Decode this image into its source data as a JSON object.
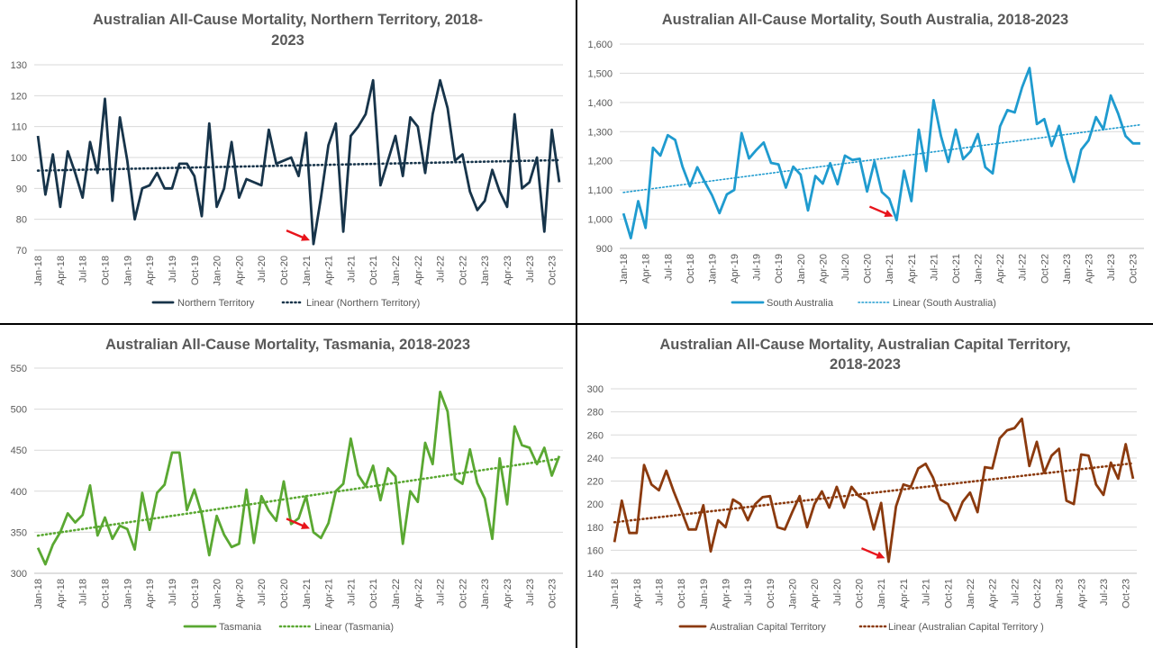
{
  "chart_data": [
    {
      "type": "line",
      "title_lines": [
        "Australian All-Cause Mortality, Northern Territory, 2018-",
        "2023"
      ],
      "ylim": [
        70,
        130
      ],
      "yticks": [
        70,
        80,
        90,
        100,
        110,
        120,
        130
      ],
      "ytick_labels": [
        "70",
        "80",
        "90",
        "100",
        "110",
        "120",
        "130"
      ],
      "x_tick_labels": [
        "Jan-18",
        "Apr-18",
        "Jul-18",
        "Oct-18",
        "Jan-19",
        "Apr-19",
        "Jul-19",
        "Oct-19",
        "Jan-20",
        "Apr-20",
        "Jul-20",
        "Oct-20",
        "Jan-21",
        "Apr-21",
        "Jul-21",
        "Oct-21",
        "Jan-22",
        "Apr-22",
        "Jul-22",
        "Oct-22",
        "Jan-23",
        "Apr-23",
        "Jul-23",
        "Oct-23"
      ],
      "grid": "horizontal",
      "legend_position": "bottom",
      "series": [
        {
          "name": "Northern Territory",
          "color": "#17344A",
          "style": "solid",
          "values": [
            107,
            88,
            101,
            84,
            102,
            95,
            87,
            105,
            95,
            119,
            86,
            113,
            99,
            80,
            90,
            91,
            95,
            90,
            90,
            98,
            98,
            94,
            81,
            111,
            84,
            90,
            105,
            87,
            93,
            92,
            91,
            109,
            98,
            99,
            100,
            94,
            108,
            72,
            87,
            104,
            111,
            76,
            107,
            110,
            114,
            125,
            91,
            99,
            107,
            94,
            113,
            110,
            95,
            114,
            125,
            116,
            99,
            101,
            89,
            83,
            86,
            96,
            89,
            84,
            114,
            90,
            92,
            100,
            76,
            109,
            92
          ]
        },
        {
          "name": "Linear (Northern Territory)",
          "color": "#17344A",
          "style": "dotted",
          "trend_of": 0
        }
      ],
      "arrow_at": "Feb-21"
    },
    {
      "type": "line",
      "title_lines": [
        "Australian All-Cause Mortality, South Australia, 2018-2023"
      ],
      "ylim": [
        900,
        1600
      ],
      "yticks": [
        900,
        1000,
        1100,
        1200,
        1300,
        1400,
        1500,
        1600
      ],
      "ytick_labels": [
        "900",
        "1,000",
        "1,100",
        "1,200",
        "1,300",
        "1,400",
        "1,500",
        "1,600"
      ],
      "x_tick_labels": [
        "Jan-18",
        "Apr-18",
        "Jul-18",
        "Oct-18",
        "Jan-19",
        "Apr-19",
        "Jul-19",
        "Oct-19",
        "Jan-20",
        "Apr-20",
        "Jul-20",
        "Oct-20",
        "Jan-21",
        "Apr-21",
        "Jul-21",
        "Oct-21",
        "Jan-22",
        "Apr-22",
        "Jul-22",
        "Oct-22",
        "Jan-23",
        "Apr-23",
        "Jul-23",
        "Oct-23"
      ],
      "grid": "horizontal",
      "legend_position": "bottom",
      "series": [
        {
          "name": "South Australia",
          "color": "#1F9BCF",
          "style": "solid",
          "values": [
            1020,
            935,
            1062,
            970,
            1245,
            1218,
            1288,
            1272,
            1180,
            1113,
            1178,
            1128,
            1082,
            1021,
            1085,
            1100,
            1295,
            1208,
            1237,
            1263,
            1193,
            1188,
            1108,
            1180,
            1153,
            1030,
            1148,
            1122,
            1192,
            1120,
            1218,
            1203,
            1207,
            1095,
            1198,
            1093,
            1070,
            997,
            1166,
            1062,
            1307,
            1165,
            1408,
            1285,
            1196,
            1307,
            1206,
            1232,
            1292,
            1178,
            1157,
            1318,
            1374,
            1366,
            1452,
            1518,
            1326,
            1343,
            1251,
            1320,
            1208,
            1128,
            1238,
            1270,
            1350,
            1308,
            1424,
            1362,
            1285,
            1260,
            1260
          ]
        },
        {
          "name": "Linear (South Australia)",
          "color": "#1F9BCF",
          "style": "dotted",
          "trend_of": 0
        }
      ],
      "arrow_at": "Feb-21"
    },
    {
      "type": "line",
      "title_lines": [
        "Australian All-Cause Mortality, Tasmania, 2018-2023"
      ],
      "ylim": [
        300,
        550
      ],
      "yticks": [
        300,
        350,
        400,
        450,
        500,
        550
      ],
      "ytick_labels": [
        "300",
        "350",
        "400",
        "450",
        "500",
        "550"
      ],
      "x_tick_labels": [
        "Jan-18",
        "Apr-18",
        "Jul-18",
        "Oct-18",
        "Jan-19",
        "Apr-19",
        "Jul-19",
        "Oct-19",
        "Jan-20",
        "Apr-20",
        "Jul-20",
        "Oct-20",
        "Jan-21",
        "Apr-21",
        "Jul-21",
        "Oct-21",
        "Jan-22",
        "Apr-22",
        "Jul-22",
        "Oct-22",
        "Jan-23",
        "Apr-23",
        "Jul-23",
        "Oct-23"
      ],
      "grid": "horizontal",
      "legend_position": "bottom",
      "series": [
        {
          "name": "Tasmania",
          "color": "#5AA832",
          "style": "solid",
          "values": [
            331,
            311,
            335,
            350,
            373,
            362,
            371,
            407,
            346,
            368,
            342,
            358,
            354,
            329,
            398,
            353,
            398,
            408,
            447,
            447,
            377,
            402,
            372,
            322,
            370,
            347,
            332,
            336,
            402,
            337,
            394,
            376,
            364,
            412,
            360,
            367,
            394,
            350,
            343,
            361,
            400,
            409,
            464,
            420,
            406,
            431,
            389,
            428,
            418,
            336,
            400,
            387,
            459,
            433,
            521,
            497,
            415,
            409,
            451,
            410,
            391,
            342,
            440,
            384,
            479,
            456,
            453,
            433,
            453,
            419,
            443
          ]
        },
        {
          "name": "Linear (Tasmania)",
          "color": "#5AA832",
          "style": "dotted",
          "trend_of": 0
        }
      ],
      "arrow_at": "Feb-21"
    },
    {
      "type": "line",
      "title_lines": [
        "Australian All-Cause Mortality, Australian Capital Territory,",
        "2018-2023"
      ],
      "ylim": [
        140,
        300
      ],
      "yticks": [
        140,
        160,
        180,
        200,
        220,
        240,
        260,
        280,
        300
      ],
      "ytick_labels": [
        "140",
        "160",
        "180",
        "200",
        "220",
        "240",
        "260",
        "280",
        "300"
      ],
      "x_tick_labels": [
        "Jan-18",
        "Apr-18",
        "Jul-18",
        "Oct-18",
        "Jan-19",
        "Apr-19",
        "Jul-19",
        "Oct-19",
        "Jan-20",
        "Apr-20",
        "Jul-20",
        "Oct-20",
        "Jan-21",
        "Apr-21",
        "Jul-21",
        "Oct-21",
        "Jan-22",
        "Apr-22",
        "Jul-22",
        "Oct-22",
        "Jan-23",
        "Apr-23",
        "Jul-23",
        "Oct-23"
      ],
      "grid": "horizontal",
      "legend_position": "bottom",
      "series": [
        {
          "name": "Australian Capital Territory",
          "color": "#8B3A0E",
          "style": "solid",
          "values": [
            167,
            203,
            175,
            175,
            234,
            217,
            212,
            229,
            211,
            195,
            178,
            178,
            199,
            159,
            186,
            180,
            204,
            200,
            186,
            200,
            206,
            207,
            180,
            178,
            193,
            207,
            180,
            200,
            211,
            197,
            215,
            197,
            215,
            207,
            203,
            178,
            201,
            150,
            198,
            217,
            215,
            231,
            235,
            223,
            204,
            200,
            186,
            202,
            210,
            193,
            232,
            231,
            257,
            264,
            266,
            274,
            233,
            254,
            227,
            242,
            248,
            203,
            200,
            243,
            242,
            217,
            208,
            236,
            222,
            252,
            222
          ]
        },
        {
          "name": "Linear (Australian Capital Territory )",
          "color": "#8B3A0E",
          "style": "dotted",
          "trend_of": 0
        }
      ],
      "arrow_at": "Feb-21"
    }
  ]
}
